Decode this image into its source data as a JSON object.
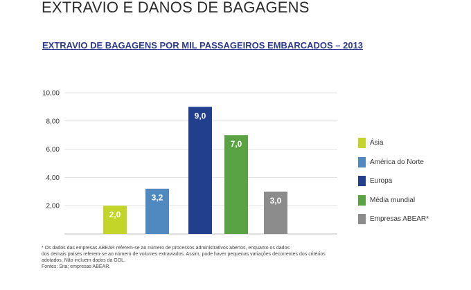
{
  "page": {
    "heading": "EXTRAVIO E DANOS DE BAGAGENS"
  },
  "chart_data": {
    "type": "bar",
    "title": "EXTRAVIO DE BAGAGENS POR MIL PASSAGEIROS EMBARCADOS – 2013",
    "categories": [
      "Ásia",
      "América do Norte",
      "Europa",
      "Média mundial",
      "Empresas ABEAR*"
    ],
    "values": [
      2.0,
      3.2,
      9.0,
      7.0,
      3.0
    ],
    "value_labels": [
      "2,0",
      "3,2",
      "9,0",
      "7,0",
      "3,0"
    ],
    "colors": [
      "#c4d52a",
      "#5089c0",
      "#223f8e",
      "#5aa344",
      "#8c8c8c"
    ],
    "ylim": [
      0,
      10
    ],
    "yticks": [
      {
        "value": 2,
        "label": "2,00"
      },
      {
        "value": 4,
        "label": "4,00"
      },
      {
        "value": 6,
        "label": "6,00"
      },
      {
        "value": 8,
        "label": "8,00"
      },
      {
        "value": 10,
        "label": "10,00"
      }
    ],
    "xlabel": "",
    "ylabel": "",
    "grid": true,
    "legend_position": "right"
  },
  "notes": {
    "lines": [
      "* Os dados das empresas ABEAR referem-se ao número de processos administrativos abertos, enquanto os dados",
      "dos demais países referem-se ao número de volumes extraviados. Assim, pode haver pequenas variações decorrentes dos critérios",
      "adotados. Não incluem dados da GOL.",
      "Fontes: Sita; empresas ABEAR."
    ]
  }
}
